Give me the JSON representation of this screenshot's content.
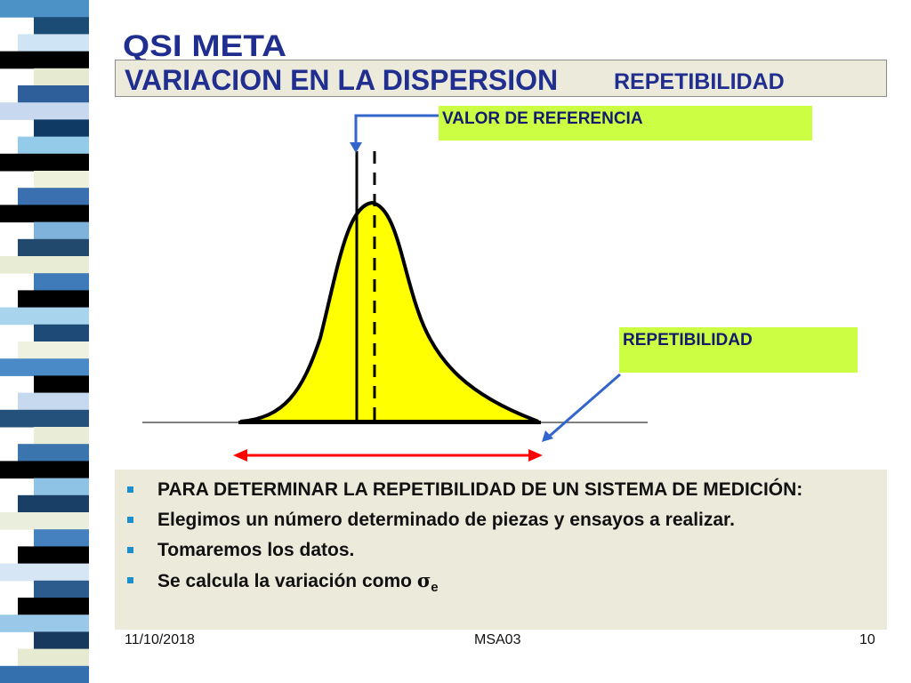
{
  "slide": {
    "logo_text": "QSI META",
    "title": "VARIACION EN LA DISPERSION",
    "subtitle": "REPETIBILIDAD"
  },
  "diagram": {
    "reference_label": "VALOR DE REFERENCIA",
    "repeatability_label": "REPETIBILIDAD",
    "curve_fill": "#ffff00",
    "arrow_color": "#3366cc",
    "range_arrow_color": "#ff0000"
  },
  "bullets": [
    {
      "text": "PARA DETERMINAR LA REPETIBILIDAD DE UN SISTEMA DE MEDICIÓN:"
    },
    {
      "text": "Elegimos un número determinado de piezas y ensayos a  realizar."
    },
    {
      "text": "Tomaremos los datos."
    },
    {
      "text": "Se calcula la variación como ",
      "symbol": "σ",
      "symbol_sub": "e"
    }
  ],
  "footer": {
    "date": "11/10/2018",
    "center": "MSA03",
    "page": "10"
  },
  "colors": {
    "title": "#1f2e8f",
    "title_bg": "#eceadb",
    "label_bg": "#ccff44",
    "bullet_marker": "#1a8fd0"
  },
  "stripes": [
    "#4d92c6",
    "#1b4c75",
    "#cfe5f6",
    "#000000",
    "#e6ead1",
    "#2f5f9a",
    "#c7d8ef",
    "#0f3a63",
    "#93cbe8",
    "#000000",
    "#eef1dc",
    "#3b70b0",
    "#000000",
    "#7fb3dc",
    "#20496d",
    "#e8ecd5",
    "#3f7bb9",
    "#000000",
    "#a9d4ee",
    "#1d4a77",
    "#f0f2e1",
    "#4a8ac6",
    "#000000",
    "#c6d9ee",
    "#24507c",
    "#e9edd7",
    "#3b75ae",
    "#000000",
    "#8fc3e5",
    "#1a3f66",
    "#eaeedc",
    "#4681bf",
    "#000000",
    "#d7e6f4",
    "#2c5c8e",
    "#000000",
    "#9ac8e8",
    "#17395e",
    "#e6ead1",
    "#3470ad"
  ]
}
